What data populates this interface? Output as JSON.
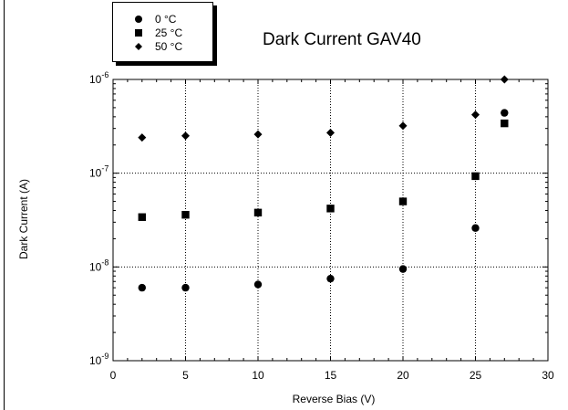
{
  "chart_data": {
    "type": "scatter",
    "title": "Dark Current GAV40",
    "xlabel": "Reverse Bias (V)",
    "ylabel": "Dark Current (A)",
    "xlim": [
      0,
      30
    ],
    "ylim": [
      1e-09,
      1e-06
    ],
    "yscale": "log",
    "grid": true,
    "legend_position": "top-left",
    "x_ticks": [
      "0",
      "5",
      "10",
      "15",
      "20",
      "25",
      "30"
    ],
    "y_ticks": [
      {
        "base": "10",
        "exp": "-9"
      },
      {
        "base": "10",
        "exp": "-8"
      },
      {
        "base": "10",
        "exp": "-7"
      },
      {
        "base": "10",
        "exp": "-6"
      }
    ],
    "series": [
      {
        "name": "0 °C",
        "marker": "circle",
        "color": "#000000",
        "x": [
          2,
          5,
          10,
          15,
          20,
          25,
          27
        ],
        "y": [
          6e-09,
          6e-09,
          6.5e-09,
          7.5e-09,
          9.5e-09,
          2.6e-08,
          4.4e-07
        ]
      },
      {
        "name": "25 °C",
        "marker": "square",
        "color": "#000000",
        "x": [
          2,
          5,
          10,
          15,
          20,
          25,
          27
        ],
        "y": [
          3.4e-08,
          3.6e-08,
          3.8e-08,
          4.2e-08,
          5e-08,
          9.3e-08,
          3.4e-07
        ]
      },
      {
        "name": "50 °C",
        "marker": "diamond",
        "color": "#000000",
        "x": [
          2,
          5,
          10,
          15,
          20,
          25,
          27
        ],
        "y": [
          2.4e-07,
          2.5e-07,
          2.6e-07,
          2.7e-07,
          3.2e-07,
          4.2e-07,
          1e-06
        ]
      }
    ]
  }
}
